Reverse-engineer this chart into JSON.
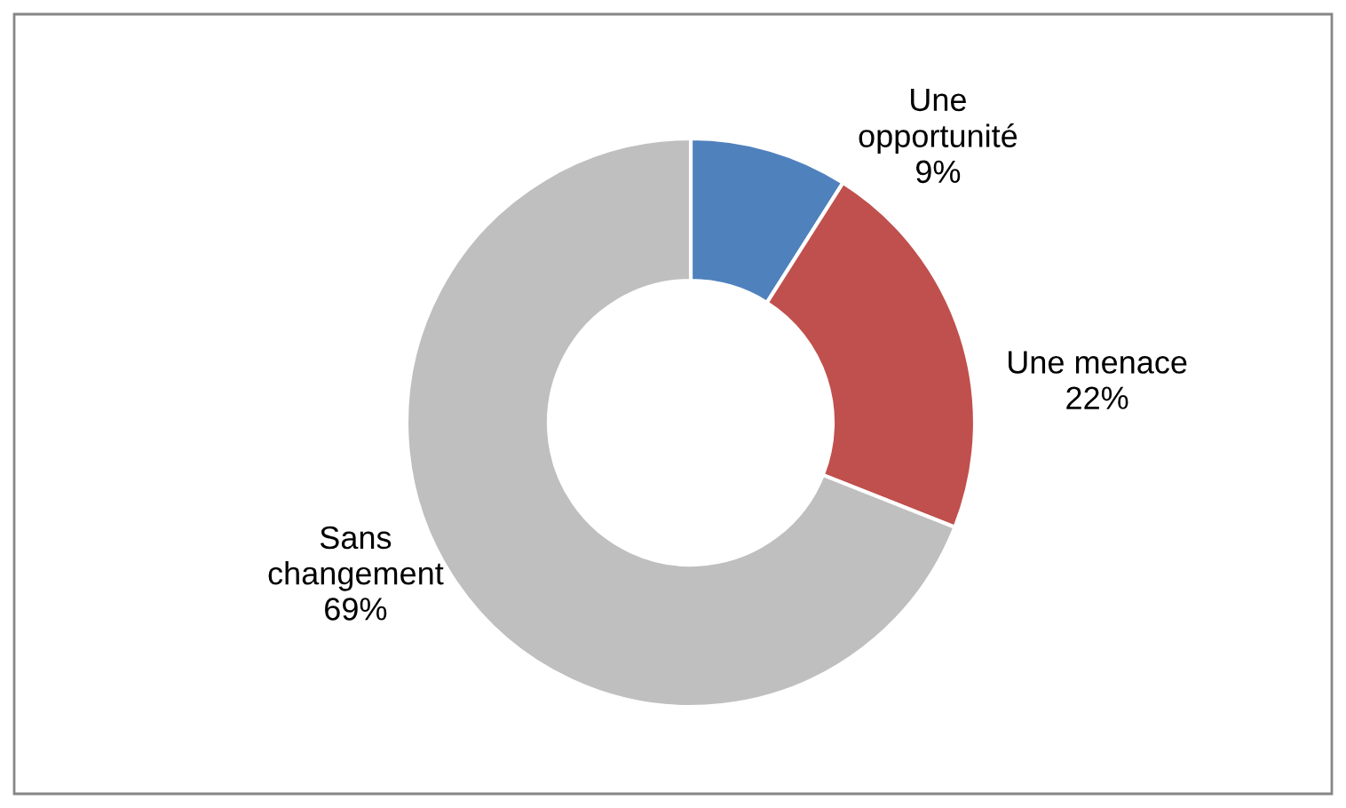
{
  "chart_data": {
    "type": "donut",
    "categories": [
      "Une opportunité",
      "Une menace",
      "Sans changement"
    ],
    "values": [
      9,
      22,
      69
    ],
    "colors": [
      "#4f81bd",
      "#c0504d",
      "#bfbfbf"
    ],
    "value_labels": [
      "9%",
      "22%",
      "69%"
    ],
    "legend": false
  }
}
